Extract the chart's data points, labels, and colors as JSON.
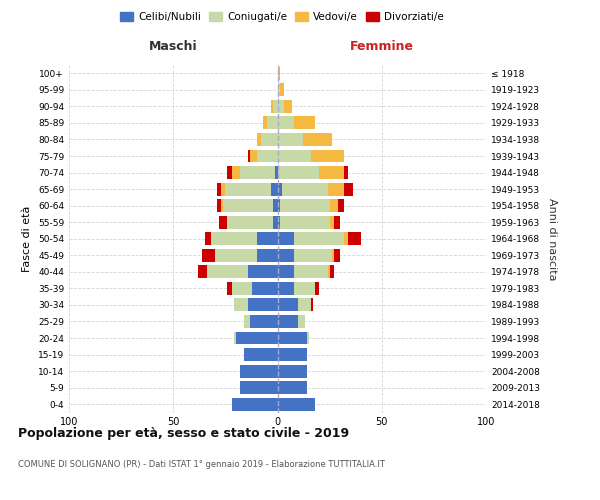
{
  "age_groups": [
    "0-4",
    "5-9",
    "10-14",
    "15-19",
    "20-24",
    "25-29",
    "30-34",
    "35-39",
    "40-44",
    "45-49",
    "50-54",
    "55-59",
    "60-64",
    "65-69",
    "70-74",
    "75-79",
    "80-84",
    "85-89",
    "90-94",
    "95-99",
    "100+"
  ],
  "birth_years": [
    "2014-2018",
    "2009-2013",
    "2004-2008",
    "1999-2003",
    "1994-1998",
    "1989-1993",
    "1984-1988",
    "1979-1983",
    "1974-1978",
    "1969-1973",
    "1964-1968",
    "1959-1963",
    "1954-1958",
    "1949-1953",
    "1944-1948",
    "1939-1943",
    "1934-1938",
    "1929-1933",
    "1924-1928",
    "1919-1923",
    "≤ 1918"
  ],
  "male_celibi": [
    22,
    18,
    18,
    16,
    20,
    13,
    14,
    12,
    14,
    10,
    10,
    2,
    2,
    3,
    1,
    0,
    0,
    0,
    0,
    0,
    0
  ],
  "male_coniugati": [
    0,
    0,
    0,
    0,
    1,
    3,
    7,
    10,
    20,
    20,
    22,
    22,
    24,
    22,
    17,
    10,
    8,
    5,
    2,
    0,
    0
  ],
  "male_vedovi": [
    0,
    0,
    0,
    0,
    0,
    0,
    0,
    0,
    0,
    0,
    0,
    0,
    1,
    2,
    4,
    3,
    2,
    2,
    1,
    0,
    0
  ],
  "male_divorziati": [
    0,
    0,
    0,
    0,
    0,
    0,
    0,
    2,
    4,
    6,
    3,
    4,
    2,
    2,
    2,
    1,
    0,
    0,
    0,
    0,
    0
  ],
  "female_celibi": [
    18,
    14,
    14,
    14,
    14,
    10,
    10,
    8,
    8,
    8,
    8,
    1,
    1,
    2,
    0,
    0,
    0,
    0,
    0,
    0,
    0
  ],
  "female_coniugati": [
    0,
    0,
    0,
    0,
    1,
    3,
    6,
    10,
    16,
    18,
    24,
    24,
    24,
    22,
    20,
    16,
    12,
    8,
    3,
    1,
    0
  ],
  "female_vedovi": [
    0,
    0,
    0,
    0,
    0,
    0,
    0,
    0,
    1,
    1,
    2,
    2,
    4,
    8,
    12,
    16,
    14,
    10,
    4,
    2,
    1
  ],
  "female_divorziati": [
    0,
    0,
    0,
    0,
    0,
    0,
    1,
    2,
    2,
    3,
    6,
    3,
    3,
    4,
    2,
    0,
    0,
    0,
    0,
    0,
    0
  ],
  "colors": {
    "celibi": "#4472c4",
    "coniugati": "#c8d9a8",
    "vedovi": "#f5b942",
    "divorziati": "#cc0000"
  },
  "title": "Popolazione per età, sesso e stato civile - 2019",
  "subtitle": "COMUNE DI SOLIGNANO (PR) - Dati ISTAT 1° gennaio 2019 - Elaborazione TUTTITALIA.IT",
  "xlabel_left": "Maschi",
  "xlabel_right": "Femmine",
  "ylabel_left": "Fasce di età",
  "ylabel_right": "Anni di nascita",
  "xlim": 100,
  "background_color": "#ffffff"
}
